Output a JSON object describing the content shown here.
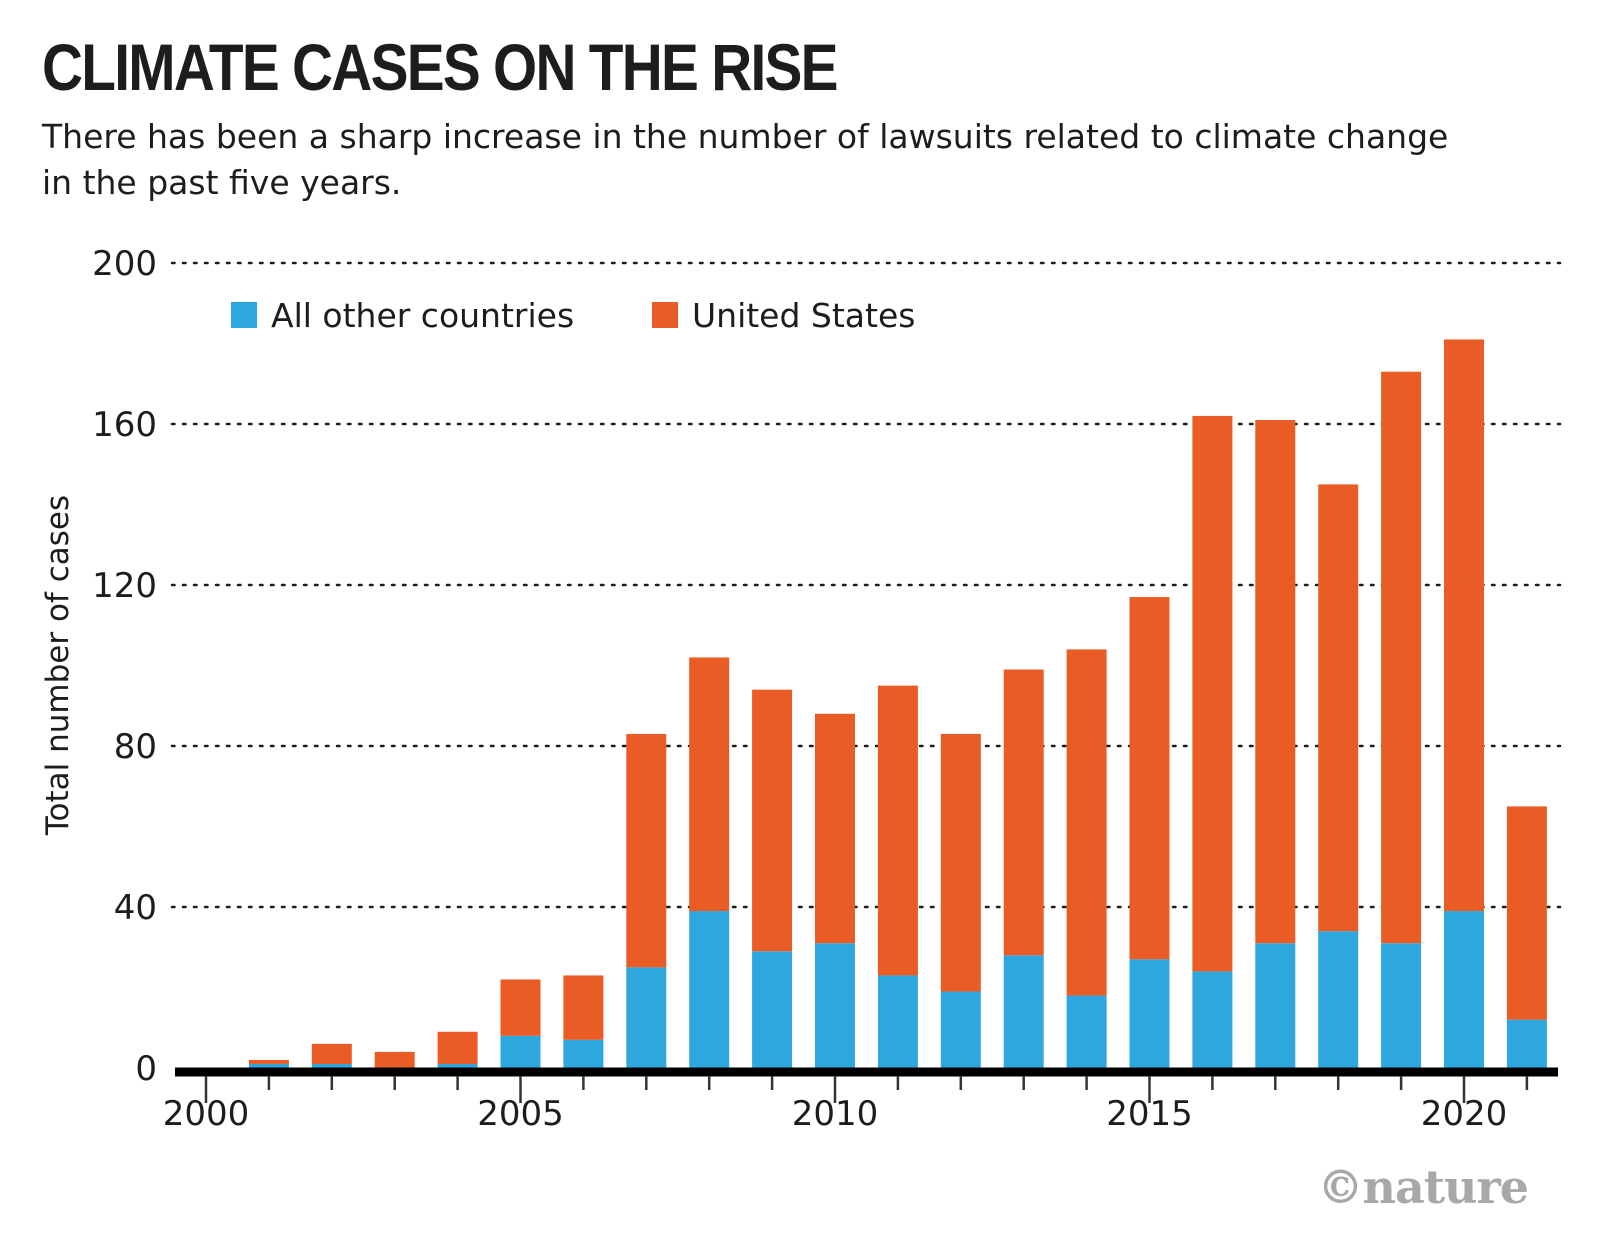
{
  "header": {
    "title": "CLIMATE CASES ON THE RISE",
    "subtitle": "There has been a sharp increase in the number of lawsuits related to climate change in the past five years."
  },
  "credit": "©nature",
  "colors": {
    "us": "#E95C25",
    "other": "#2EA7DF",
    "axis": "#000000",
    "grid": "#1d1d1b"
  },
  "chart_data": {
    "type": "bar",
    "stacked": true,
    "title": "CLIMATE CASES ON THE RISE",
    "subtitle": "There has been a sharp increase in the number of lawsuits related to climate change in the past five years.",
    "xlabel": "",
    "ylabel": "Total number of cases",
    "ylim": [
      0,
      200
    ],
    "yticks": [
      0,
      40,
      80,
      120,
      160,
      200
    ],
    "xticks_labeled": [
      2000,
      2005,
      2010,
      2015,
      2020
    ],
    "xlim": [
      2000,
      2021
    ],
    "grid": "horizontal dotted",
    "legend_position": "top-left",
    "categories": [
      2001,
      2002,
      2003,
      2004,
      2005,
      2006,
      2007,
      2008,
      2009,
      2010,
      2011,
      2012,
      2013,
      2014,
      2015,
      2016,
      2017,
      2018,
      2019,
      2020,
      2021
    ],
    "series": [
      {
        "name": "All other countries",
        "color": "#2EA7DF",
        "values": [
          1,
          1,
          0,
          1,
          8,
          7,
          25,
          39,
          29,
          31,
          23,
          19,
          28,
          18,
          27,
          24,
          31,
          34,
          31,
          39,
          12
        ]
      },
      {
        "name": "United States",
        "color": "#E95C25",
        "values": [
          1,
          5,
          4,
          8,
          14,
          16,
          58,
          63,
          65,
          57,
          72,
          64,
          71,
          86,
          90,
          138,
          130,
          111,
          142,
          142,
          53
        ]
      }
    ],
    "totals": [
      2,
      6,
      4,
      9,
      22,
      23,
      83,
      102,
      94,
      88,
      95,
      83,
      99,
      104,
      117,
      162,
      161,
      145,
      173,
      181,
      65
    ]
  }
}
